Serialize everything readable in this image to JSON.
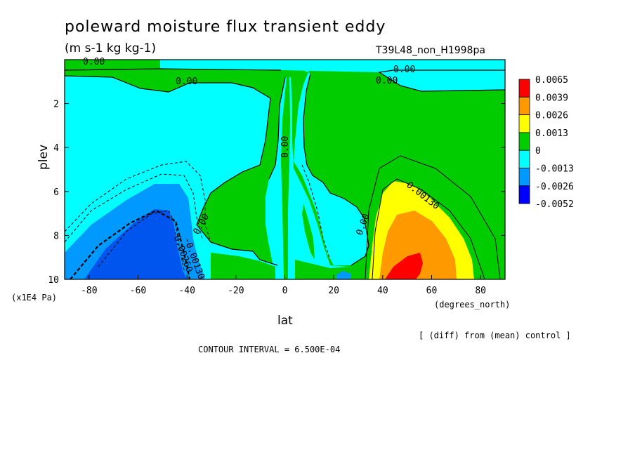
{
  "chart_data": {
    "type": "heatmap",
    "title": "poleward moisture flux transient eddy",
    "units": "(m s-1 kg kg-1)",
    "run_label": "T39L48_non_H1998pa",
    "xlabel": "lat",
    "xunits": "(degrees_north)",
    "ylabel": "plev",
    "yunits": "(x1E4 Pa)",
    "xlim": [
      -90,
      90
    ],
    "ylim": [
      0,
      10
    ],
    "y_inverted": true,
    "x_ticks": [
      "-80",
      "-60",
      "-40",
      "-20",
      "0",
      "20",
      "40",
      "60",
      "80"
    ],
    "x_tick_values": [
      -80,
      -60,
      -40,
      -20,
      0,
      20,
      40,
      60,
      80
    ],
    "y_ticks": [
      "2",
      "4",
      "6",
      "8",
      "10"
    ],
    "y_tick_values": [
      2,
      4,
      6,
      8,
      10
    ],
    "contour_interval": "CONTOUR INTERVAL = 6.500E-04",
    "footnote": "[ (diff) from (mean) control ]",
    "contour_labels": [
      "0.00",
      "0.00",
      "0.00",
      "0.00",
      "0.00",
      "0.00",
      "0.00",
      "0.00130",
      "-0.00130",
      "-0.00260"
    ],
    "legend": {
      "placement": "right",
      "colors": [
        "#ff0000",
        "#ff9900",
        "#ffff00",
        "#00cc00",
        "#00ffff",
        "#0099ff",
        "#0000ff"
      ],
      "labels": [
        "0.0065",
        "0.0039",
        "0.0026",
        "0.0013",
        "0",
        "-0.0013",
        "-0.0026",
        "-0.0052"
      ]
    },
    "regions": [
      {
        "level": "0.0013 to 0.0026",
        "description_lat": [
          35,
          75
        ],
        "plev": [
          5.5,
          10
        ]
      },
      {
        "level": "0.0026 to 0.0039",
        "description_lat": [
          38,
          65
        ],
        "plev": [
          7,
          10
        ]
      },
      {
        "level": "0.0039 to 0.0065",
        "description_lat": [
          40,
          55
        ],
        "plev": [
          8.6,
          10
        ]
      },
      {
        "level": "-0.0026 to -0.0052",
        "description_lat": [
          -75,
          -38
        ],
        "plev": [
          6.8,
          10
        ]
      }
    ]
  }
}
